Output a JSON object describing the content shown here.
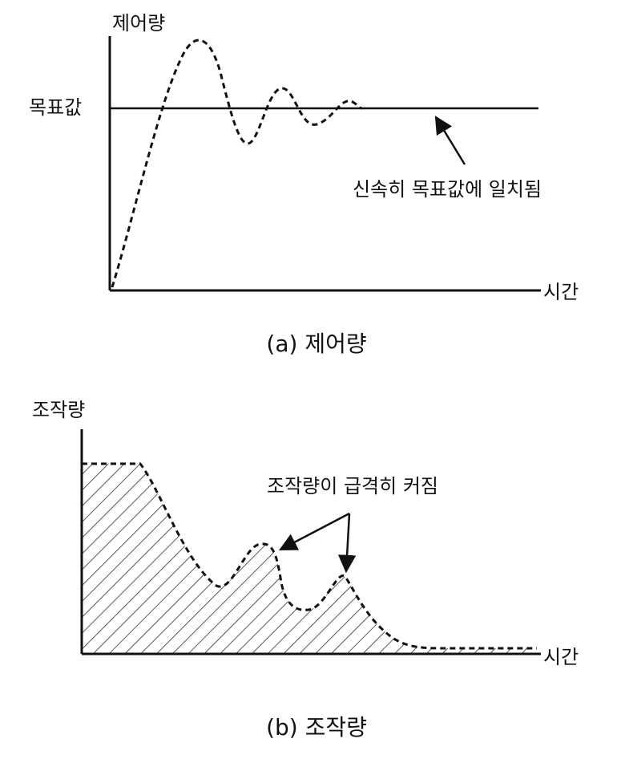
{
  "panels": [
    {
      "y_label": "제어량",
      "target_label": "목표값",
      "annotation": "신속히 목표값에 일치됨",
      "x_label": "시간",
      "caption": "(a) 제어량"
    },
    {
      "y_label": "조작량",
      "annotation": "조작량이 급격히 커짐",
      "x_label": "시간",
      "caption": "(b) 조작량"
    }
  ]
}
